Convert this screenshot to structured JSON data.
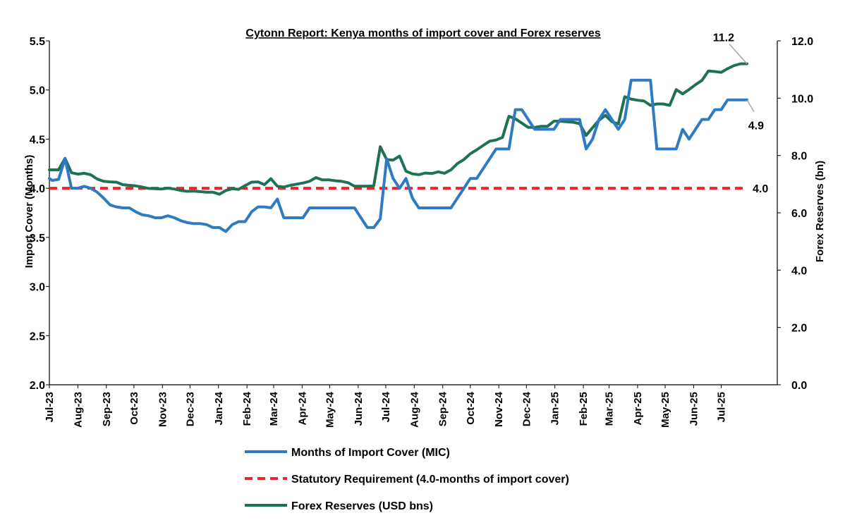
{
  "chart_data": {
    "type": "line",
    "title": "Cytonn Report: Kenya months of import cover and Forex reserves",
    "ylabel_left": "Import Cover (Months)",
    "ylabel_right": "Forex Reserves (bn)",
    "ylim_left": [
      2.0,
      5.5
    ],
    "ylim_right": [
      0.0,
      12.0
    ],
    "yticks_left": [
      "2.0",
      "2.5",
      "3.0",
      "3.5",
      "4.0",
      "4.5",
      "5.0",
      "5.5"
    ],
    "yticks_right": [
      "0.0",
      "2.0",
      "4.0",
      "6.0",
      "8.0",
      "10.0",
      "12.0"
    ],
    "x_start": "2023-07-01",
    "x_end": "2025-08-31",
    "x_ticks": [
      {
        "date": "2023-07-01",
        "label": "Jul-23"
      },
      {
        "date": "2023-08-01",
        "label": "Aug-23"
      },
      {
        "date": "2023-09-01",
        "label": "Sep-23"
      },
      {
        "date": "2023-10-01",
        "label": "Oct-23"
      },
      {
        "date": "2023-11-01",
        "label": "Nov-23"
      },
      {
        "date": "2023-12-01",
        "label": "Dec-23"
      },
      {
        "date": "2024-01-01",
        "label": "Jan-24"
      },
      {
        "date": "2024-02-01",
        "label": "Feb-24"
      },
      {
        "date": "2024-03-01",
        "label": "Mar-24"
      },
      {
        "date": "2024-04-01",
        "label": "Apr-24"
      },
      {
        "date": "2024-05-01",
        "label": "May-24"
      },
      {
        "date": "2024-06-01",
        "label": "Jun-24"
      },
      {
        "date": "2024-07-01",
        "label": "Jul-24"
      },
      {
        "date": "2024-08-01",
        "label": "Aug-24"
      },
      {
        "date": "2024-09-01",
        "label": "Sep-24"
      },
      {
        "date": "2024-10-01",
        "label": "Oct-24"
      },
      {
        "date": "2024-11-01",
        "label": "Nov-24"
      },
      {
        "date": "2024-12-01",
        "label": "Dec-24"
      },
      {
        "date": "2025-01-01",
        "label": "Jan-25"
      },
      {
        "date": "2025-02-01",
        "label": "Feb-25"
      },
      {
        "date": "2025-03-01",
        "label": "Mar-25"
      },
      {
        "date": "2025-04-01",
        "label": "Apr-25"
      },
      {
        "date": "2025-05-01",
        "label": "May-25"
      },
      {
        "date": "2025-06-01",
        "label": "Jun-25"
      },
      {
        "date": "2025-07-01",
        "label": "Jul-25"
      }
    ],
    "legend_position": "bottom",
    "series": [
      {
        "name": "Months of Import Cover (MIC)",
        "axis": "left",
        "color": "#2E7BC4",
        "style": "solid",
        "points": [
          [
            "2023-07-01",
            4.1
          ],
          [
            "2023-07-04",
            4.08
          ],
          [
            "2023-07-11",
            4.09
          ],
          [
            "2023-07-18",
            4.3
          ],
          [
            "2023-07-25",
            4.0
          ],
          [
            "2023-08-01",
            4.0
          ],
          [
            "2023-08-08",
            4.02
          ],
          [
            "2023-08-15",
            4.0
          ],
          [
            "2023-08-22",
            3.96
          ],
          [
            "2023-08-29",
            3.9
          ],
          [
            "2023-09-05",
            3.83
          ],
          [
            "2023-09-12",
            3.81
          ],
          [
            "2023-09-19",
            3.8
          ],
          [
            "2023-09-26",
            3.8
          ],
          [
            "2023-10-03",
            3.76
          ],
          [
            "2023-10-10",
            3.73
          ],
          [
            "2023-10-17",
            3.72
          ],
          [
            "2023-10-24",
            3.7
          ],
          [
            "2023-10-31",
            3.7
          ],
          [
            "2023-11-07",
            3.72
          ],
          [
            "2023-11-14",
            3.7
          ],
          [
            "2023-11-21",
            3.67
          ],
          [
            "2023-11-28",
            3.65
          ],
          [
            "2023-12-05",
            3.64
          ],
          [
            "2023-12-12",
            3.64
          ],
          [
            "2023-12-19",
            3.63
          ],
          [
            "2023-12-26",
            3.6
          ],
          [
            "2024-01-02",
            3.6
          ],
          [
            "2024-01-09",
            3.56
          ],
          [
            "2024-01-16",
            3.63
          ],
          [
            "2024-01-23",
            3.66
          ],
          [
            "2024-01-30",
            3.66
          ],
          [
            "2024-02-06",
            3.76
          ],
          [
            "2024-02-13",
            3.81
          ],
          [
            "2024-02-20",
            3.81
          ],
          [
            "2024-02-27",
            3.8
          ],
          [
            "2024-03-05",
            3.89
          ],
          [
            "2024-03-12",
            3.7
          ],
          [
            "2024-03-19",
            3.7
          ],
          [
            "2024-03-26",
            3.7
          ],
          [
            "2024-04-02",
            3.7
          ],
          [
            "2024-04-09",
            3.8
          ],
          [
            "2024-04-16",
            3.8
          ],
          [
            "2024-04-23",
            3.8
          ],
          [
            "2024-04-30",
            3.8
          ],
          [
            "2024-05-07",
            3.8
          ],
          [
            "2024-05-14",
            3.8
          ],
          [
            "2024-05-21",
            3.8
          ],
          [
            "2024-05-28",
            3.8
          ],
          [
            "2024-06-04",
            3.7
          ],
          [
            "2024-06-11",
            3.6
          ],
          [
            "2024-06-18",
            3.6
          ],
          [
            "2024-06-25",
            3.69
          ],
          [
            "2024-07-02",
            4.3
          ],
          [
            "2024-07-09",
            4.1
          ],
          [
            "2024-07-16",
            4.0
          ],
          [
            "2024-07-23",
            4.1
          ],
          [
            "2024-07-30",
            3.9
          ],
          [
            "2024-08-06",
            3.8
          ],
          [
            "2024-08-13",
            3.8
          ],
          [
            "2024-08-20",
            3.8
          ],
          [
            "2024-08-27",
            3.8
          ],
          [
            "2024-09-03",
            3.8
          ],
          [
            "2024-09-10",
            3.8
          ],
          [
            "2024-09-17",
            3.9
          ],
          [
            "2024-09-24",
            4.0
          ],
          [
            "2024-10-01",
            4.1
          ],
          [
            "2024-10-08",
            4.1
          ],
          [
            "2024-10-15",
            4.2
          ],
          [
            "2024-10-22",
            4.3
          ],
          [
            "2024-10-29",
            4.4
          ],
          [
            "2024-11-05",
            4.4
          ],
          [
            "2024-11-12",
            4.4
          ],
          [
            "2024-11-19",
            4.8
          ],
          [
            "2024-11-26",
            4.8
          ],
          [
            "2024-12-03",
            4.7
          ],
          [
            "2024-12-10",
            4.6
          ],
          [
            "2024-12-17",
            4.6
          ],
          [
            "2024-12-24",
            4.6
          ],
          [
            "2024-12-31",
            4.6
          ],
          [
            "2025-01-07",
            4.7
          ],
          [
            "2025-01-14",
            4.7
          ],
          [
            "2025-01-21",
            4.7
          ],
          [
            "2025-01-28",
            4.7
          ],
          [
            "2025-02-04",
            4.4
          ],
          [
            "2025-02-11",
            4.5
          ],
          [
            "2025-02-18",
            4.7
          ],
          [
            "2025-02-25",
            4.8
          ],
          [
            "2025-03-04",
            4.7
          ],
          [
            "2025-03-11",
            4.6
          ],
          [
            "2025-03-18",
            4.7
          ],
          [
            "2025-03-25",
            5.1
          ],
          [
            "2025-04-01",
            5.1
          ],
          [
            "2025-04-08",
            5.1
          ],
          [
            "2025-04-15",
            5.1
          ],
          [
            "2025-04-22",
            4.4
          ],
          [
            "2025-04-29",
            4.4
          ],
          [
            "2025-05-06",
            4.4
          ],
          [
            "2025-05-13",
            4.4
          ],
          [
            "2025-05-20",
            4.6
          ],
          [
            "2025-05-27",
            4.5
          ],
          [
            "2025-06-03",
            4.6
          ],
          [
            "2025-06-10",
            4.7
          ],
          [
            "2025-06-17",
            4.7
          ],
          [
            "2025-06-24",
            4.8
          ],
          [
            "2025-07-01",
            4.8
          ],
          [
            "2025-07-08",
            4.9
          ],
          [
            "2025-07-15",
            4.9
          ],
          [
            "2025-07-22",
            4.9
          ],
          [
            "2025-07-29",
            4.9
          ]
        ]
      },
      {
        "name": "Statutory Requirement (4.0-months of import cover)",
        "axis": "left",
        "color": "#E8262B",
        "style": "dashed",
        "points": [
          [
            "2023-07-01",
            4.0
          ],
          [
            "2025-07-29",
            4.0
          ]
        ]
      },
      {
        "name": "Forex Reserves (USD bns)",
        "axis": "right",
        "color": "#1E7251",
        "style": "solid",
        "points": [
          [
            "2023-07-01",
            7.5
          ],
          [
            "2023-07-04",
            7.5
          ],
          [
            "2023-07-11",
            7.5
          ],
          [
            "2023-07-18",
            7.9
          ],
          [
            "2023-07-25",
            7.4
          ],
          [
            "2023-08-01",
            7.35
          ],
          [
            "2023-08-08",
            7.38
          ],
          [
            "2023-08-15",
            7.33
          ],
          [
            "2023-08-22",
            7.18
          ],
          [
            "2023-08-29",
            7.1
          ],
          [
            "2023-09-05",
            7.08
          ],
          [
            "2023-09-12",
            7.07
          ],
          [
            "2023-09-19",
            6.98
          ],
          [
            "2023-09-26",
            6.96
          ],
          [
            "2023-10-03",
            6.94
          ],
          [
            "2023-10-10",
            6.9
          ],
          [
            "2023-10-17",
            6.85
          ],
          [
            "2023-10-24",
            6.84
          ],
          [
            "2023-10-31",
            6.83
          ],
          [
            "2023-11-07",
            6.86
          ],
          [
            "2023-11-14",
            6.83
          ],
          [
            "2023-11-21",
            6.78
          ],
          [
            "2023-11-28",
            6.75
          ],
          [
            "2023-12-05",
            6.76
          ],
          [
            "2023-12-12",
            6.74
          ],
          [
            "2023-12-19",
            6.72
          ],
          [
            "2023-12-26",
            6.72
          ],
          [
            "2024-01-02",
            6.65
          ],
          [
            "2024-01-09",
            6.78
          ],
          [
            "2024-01-16",
            6.84
          ],
          [
            "2024-01-23",
            6.82
          ],
          [
            "2024-01-30",
            6.95
          ],
          [
            "2024-02-06",
            7.07
          ],
          [
            "2024-02-13",
            7.08
          ],
          [
            "2024-02-20",
            6.98
          ],
          [
            "2024-02-27",
            7.19
          ],
          [
            "2024-03-05",
            6.93
          ],
          [
            "2024-03-12",
            6.9
          ],
          [
            "2024-03-19",
            6.96
          ],
          [
            "2024-03-26",
            7.0
          ],
          [
            "2024-04-02",
            7.04
          ],
          [
            "2024-04-09",
            7.1
          ],
          [
            "2024-04-16",
            7.23
          ],
          [
            "2024-04-23",
            7.15
          ],
          [
            "2024-04-30",
            7.15
          ],
          [
            "2024-05-07",
            7.12
          ],
          [
            "2024-05-14",
            7.1
          ],
          [
            "2024-05-21",
            7.05
          ],
          [
            "2024-05-28",
            6.93
          ],
          [
            "2024-06-04",
            6.93
          ],
          [
            "2024-06-11",
            6.93
          ],
          [
            "2024-06-18",
            6.95
          ],
          [
            "2024-06-25",
            8.31
          ],
          [
            "2024-07-02",
            7.86
          ],
          [
            "2024-07-09",
            7.84
          ],
          [
            "2024-07-16",
            7.98
          ],
          [
            "2024-07-23",
            7.45
          ],
          [
            "2024-07-30",
            7.36
          ],
          [
            "2024-08-06",
            7.33
          ],
          [
            "2024-08-13",
            7.39
          ],
          [
            "2024-08-20",
            7.37
          ],
          [
            "2024-08-27",
            7.43
          ],
          [
            "2024-09-03",
            7.38
          ],
          [
            "2024-09-10",
            7.5
          ],
          [
            "2024-09-17",
            7.72
          ],
          [
            "2024-09-24",
            7.86
          ],
          [
            "2024-10-01",
            8.06
          ],
          [
            "2024-10-08",
            8.2
          ],
          [
            "2024-10-15",
            8.35
          ],
          [
            "2024-10-22",
            8.5
          ],
          [
            "2024-10-29",
            8.54
          ],
          [
            "2024-11-05",
            8.63
          ],
          [
            "2024-11-12",
            9.37
          ],
          [
            "2024-11-19",
            9.28
          ],
          [
            "2024-11-26",
            9.13
          ],
          [
            "2024-12-03",
            8.98
          ],
          [
            "2024-12-10",
            8.98
          ],
          [
            "2024-12-17",
            9.02
          ],
          [
            "2024-12-24",
            9.02
          ],
          [
            "2024-12-31",
            9.2
          ],
          [
            "2025-01-07",
            9.2
          ],
          [
            "2025-01-14",
            9.18
          ],
          [
            "2025-01-21",
            9.16
          ],
          [
            "2025-01-28",
            9.11
          ],
          [
            "2025-02-04",
            8.7
          ],
          [
            "2025-02-11",
            8.97
          ],
          [
            "2025-02-18",
            9.23
          ],
          [
            "2025-02-25",
            9.4
          ],
          [
            "2025-03-04",
            9.18
          ],
          [
            "2025-03-11",
            9.1
          ],
          [
            "2025-03-18",
            10.05
          ],
          [
            "2025-03-25",
            9.97
          ],
          [
            "2025-04-01",
            9.93
          ],
          [
            "2025-04-08",
            9.9
          ],
          [
            "2025-04-15",
            9.75
          ],
          [
            "2025-04-22",
            9.8
          ],
          [
            "2025-04-29",
            9.8
          ],
          [
            "2025-05-06",
            9.75
          ],
          [
            "2025-05-13",
            10.3
          ],
          [
            "2025-05-20",
            10.15
          ],
          [
            "2025-05-27",
            10.3
          ],
          [
            "2025-06-03",
            10.47
          ],
          [
            "2025-06-10",
            10.62
          ],
          [
            "2025-06-17",
            10.95
          ],
          [
            "2025-06-24",
            10.93
          ],
          [
            "2025-07-01",
            10.9
          ],
          [
            "2025-07-08",
            11.03
          ],
          [
            "2025-07-15",
            11.14
          ],
          [
            "2025-07-22",
            11.2
          ],
          [
            "2025-07-29",
            11.2
          ]
        ]
      }
    ],
    "annotations": [
      {
        "text": "11.2",
        "series": "Forex Reserves (USD bns)"
      },
      {
        "text": "4.9",
        "series": "Months of Import Cover (MIC)"
      },
      {
        "text": "4.0",
        "series": "Statutory Requirement (4.0-months of import cover)"
      }
    ]
  }
}
